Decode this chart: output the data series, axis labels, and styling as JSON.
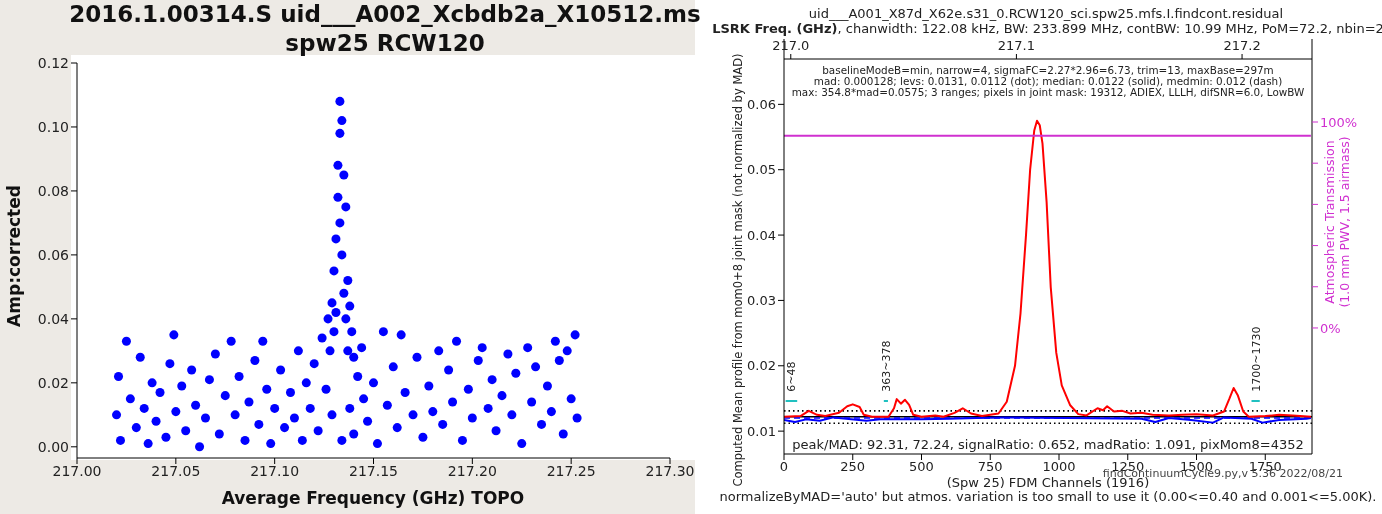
{
  "chart_data": [
    {
      "type": "scatter",
      "title": "2016.1.00314.S uid___A002_Xcbdb2a_X10512.ms",
      "subtitle": "spw25 RCW120",
      "xlabel": "Average Frequency (GHz) TOPO",
      "ylabel": "Amp:corrected",
      "color": "#0000ff",
      "marker": "circle",
      "x": [
        217.02,
        217.021,
        217.022,
        217.025,
        217.027,
        217.03,
        217.032,
        217.034,
        217.036,
        217.038,
        217.04,
        217.042,
        217.045,
        217.047,
        217.049,
        217.05,
        217.053,
        217.055,
        217.058,
        217.06,
        217.062,
        217.065,
        217.067,
        217.07,
        217.072,
        217.075,
        217.078,
        217.08,
        217.082,
        217.085,
        217.087,
        217.09,
        217.092,
        217.094,
        217.096,
        217.098,
        217.1,
        217.103,
        217.105,
        217.108,
        217.11,
        217.112,
        217.114,
        217.116,
        217.118,
        217.12,
        217.122,
        217.124,
        217.126,
        217.127,
        217.128,
        217.129,
        217.129,
        217.13,
        217.13,
        217.131,
        217.131,
        217.132,
        217.132,
        217.133,
        217.133,
        217.133,
        217.134,
        217.134,
        217.134,
        217.135,
        217.135,
        217.136,
        217.136,
        217.137,
        217.137,
        217.138,
        217.138,
        217.139,
        217.14,
        217.14,
        217.142,
        217.144,
        217.145,
        217.147,
        217.15,
        217.152,
        217.155,
        217.157,
        217.16,
        217.162,
        217.164,
        217.166,
        217.17,
        217.172,
        217.175,
        217.178,
        217.18,
        217.183,
        217.185,
        217.188,
        217.19,
        217.192,
        217.195,
        217.198,
        217.2,
        217.203,
        217.205,
        217.208,
        217.21,
        217.212,
        217.215,
        217.218,
        217.22,
        217.222,
        217.225,
        217.228,
        217.23,
        217.232,
        217.235,
        217.238,
        217.24,
        217.242,
        217.244,
        217.246,
        217.248,
        217.25,
        217.252,
        217.253
      ],
      "values": [
        0.01,
        0.022,
        0.002,
        0.033,
        0.015,
        0.006,
        0.028,
        0.012,
        0.001,
        0.02,
        0.008,
        0.017,
        0.003,
        0.026,
        0.035,
        0.011,
        0.019,
        0.005,
        0.024,
        0.013,
        0.0,
        0.009,
        0.021,
        0.029,
        0.004,
        0.016,
        0.033,
        0.01,
        0.022,
        0.002,
        0.014,
        0.027,
        0.007,
        0.033,
        0.018,
        0.001,
        0.012,
        0.024,
        0.006,
        0.017,
        0.009,
        0.03,
        0.002,
        0.02,
        0.012,
        0.026,
        0.005,
        0.034,
        0.018,
        0.04,
        0.03,
        0.045,
        0.01,
        0.055,
        0.036,
        0.065,
        0.042,
        0.078,
        0.088,
        0.098,
        0.108,
        0.07,
        0.102,
        0.06,
        0.002,
        0.085,
        0.048,
        0.075,
        0.04,
        0.052,
        0.03,
        0.044,
        0.012,
        0.036,
        0.028,
        0.004,
        0.022,
        0.031,
        0.015,
        0.008,
        0.02,
        0.001,
        0.036,
        0.013,
        0.025,
        0.006,
        0.035,
        0.017,
        0.01,
        0.028,
        0.003,
        0.019,
        0.011,
        0.03,
        0.007,
        0.024,
        0.014,
        0.033,
        0.002,
        0.018,
        0.009,
        0.027,
        0.031,
        0.012,
        0.021,
        0.005,
        0.016,
        0.029,
        0.01,
        0.023,
        0.001,
        0.031,
        0.014,
        0.025,
        0.007,
        0.019,
        0.011,
        0.033,
        0.027,
        0.004,
        0.03,
        0.015,
        0.035,
        0.009
      ],
      "xlim": [
        217.0,
        217.3
      ],
      "xticks": [
        {
          "value": 217.0,
          "label": "217.00"
        },
        {
          "value": 217.05,
          "label": "217.05"
        },
        {
          "value": 217.1,
          "label": "217.10"
        },
        {
          "value": 217.15,
          "label": "217.15"
        },
        {
          "value": 217.2,
          "label": "217.20"
        },
        {
          "value": 217.25,
          "label": "217.25"
        },
        {
          "value": 217.3,
          "label": "217.30"
        }
      ],
      "ylim": [
        -0.0035,
        0.12
      ],
      "yticks": [
        {
          "value": 0,
          "label": "0.00"
        },
        {
          "value": 0.02,
          "label": "0.02"
        },
        {
          "value": 0.04,
          "label": "0.04"
        },
        {
          "value": 0.06,
          "label": "0.06"
        },
        {
          "value": 0.08,
          "label": "0.08"
        },
        {
          "value": 0.1,
          "label": "0.10"
        },
        {
          "value": 0.12,
          "label": "0.12"
        }
      ]
    },
    {
      "type": "line",
      "title": "uid___A001_X87d_X62e.s31_0.RCW120_sci.spw25.mfs.I.findcont.residual",
      "x2label": "LSRK Freq. (GHz)",
      "subtitle": ", chanwidth: 122.08 kHz, BW: 233.899 MHz, contBW: 10.99 MHz, PoM=72.2, nbin=2",
      "xlabel": "(Spw 25) FDM Channels (1916)",
      "ylabel": "Computed Mean profile from mom0+8 joint mask (not normalized by MAD)",
      "y2label": "Atmospheric Transmission\n(1.0 mm PWV, 1.5 airmass)",
      "series": [
        {
          "color": "#0000ff",
          "x": [
            0,
            40,
            80,
            130,
            180,
            300,
            350,
            500,
            600,
            700,
            800,
            1300,
            1350,
            1400,
            1480,
            1560,
            1600,
            1700,
            1740,
            1800,
            1900,
            1916
          ],
          "values": [
            0.0117,
            0.0114,
            0.0118,
            0.0116,
            0.0121,
            0.0116,
            0.0118,
            0.0118,
            0.0119,
            0.012,
            0.0121,
            0.0119,
            0.0114,
            0.012,
            0.0117,
            0.0113,
            0.0121,
            0.0119,
            0.0113,
            0.0117,
            0.0119,
            0.012
          ]
        },
        {
          "color": "#ff0000",
          "x": [
            0,
            60,
            90,
            120,
            150,
            200,
            230,
            250,
            275,
            290,
            320,
            380,
            400,
            410,
            425,
            440,
            455,
            470,
            500,
            550,
            580,
            620,
            650,
            680,
            720,
            780,
            810,
            840,
            860,
            880,
            895,
            910,
            920,
            930,
            940,
            955,
            970,
            990,
            1010,
            1040,
            1070,
            1100,
            1140,
            1160,
            1175,
            1200,
            1230,
            1260,
            1300,
            1340,
            1400,
            1450,
            1500,
            1560,
            1600,
            1620,
            1635,
            1650,
            1670,
            1690,
            1750,
            1800,
            1850,
            1916
          ],
          "values": [
            0.0122,
            0.0123,
            0.0131,
            0.0125,
            0.0123,
            0.0128,
            0.0138,
            0.0141,
            0.0137,
            0.0125,
            0.0122,
            0.0122,
            0.0135,
            0.0149,
            0.0142,
            0.0148,
            0.014,
            0.0125,
            0.0122,
            0.0124,
            0.0122,
            0.0128,
            0.0135,
            0.0127,
            0.0123,
            0.0127,
            0.0145,
            0.02,
            0.028,
            0.04,
            0.05,
            0.056,
            0.0575,
            0.0568,
            0.054,
            0.045,
            0.032,
            0.022,
            0.017,
            0.014,
            0.0126,
            0.0124,
            0.0135,
            0.0132,
            0.0138,
            0.013,
            0.0131,
            0.0127,
            0.0128,
            0.0125,
            0.0124,
            0.0125,
            0.0126,
            0.0124,
            0.013,
            0.015,
            0.0166,
            0.0155,
            0.013,
            0.0122,
            0.0123,
            0.0125,
            0.0124,
            0.0122
          ]
        },
        {
          "color": "#20c0c0",
          "x": [
            6,
            48,
            200,
            363,
            378,
            1000,
            1700,
            1730
          ],
          "values": [
            0.0146,
            0.0146,
            null,
            0.0146,
            0.0146,
            null,
            0.0146,
            0.0146
          ]
        },
        {
          "color": "#d030d0",
          "axis": "y2",
          "x": [
            0,
            1916
          ],
          "values": [
            93.3,
            93.3
          ]
        }
      ],
      "ref_lines": [
        {
          "axis": "y",
          "value": 0.0131,
          "color": "#000000",
          "line_style": "dotted"
        },
        {
          "axis": "y",
          "value": 0.0112,
          "color": "#000000",
          "line_style": "dotted"
        },
        {
          "axis": "y",
          "value": 0.0122,
          "color": "#000000",
          "line_style": "solid"
        },
        {
          "axis": "y",
          "value": 0.012,
          "color": "#0000ff",
          "line_style": "dashed"
        }
      ],
      "annotations": [
        "baselineModeB=min, narrow=4, sigmaFC=2.27*2.96=6.73, trim=13, maxBase=297m",
        "mad: 0.000128; levs: 0.0131, 0.0112 (dot); median: 0.0122 (solid), medmin: 0.012 (dash)",
        "max: 354.8*mad=0.0575; 3 ranges; pixels in joint mask: 19312, ADIEX, LLLH, difSNR=6.0, LowBW",
        "peak/MAD: 92.31, 72.24, signalRatio: 0.652, madRatio: 1.091, pixMom8=4352",
        "findContinuumCycle9.py,v 5.36 2022/08/21",
        "normalizeByMAD='auto' but atmos. variation is too small to use it (0.00<=0.40 and 0.001<=5.00K).",
        "6~48",
        "363~378",
        "1700~1730"
      ],
      "xlim": [
        0,
        1920
      ],
      "xticks": [
        0,
        250,
        500,
        750,
        1000,
        1250,
        1500,
        1750
      ],
      "ylim": [
        0.0065,
        0.07
      ],
      "yticks": [
        0.01,
        0.02,
        0.03,
        0.04,
        0.05,
        0.06
      ],
      "y2lim": [
        -61.2,
        140.3
      ],
      "y2ticks": [
        {
          "value": 0,
          "label": "0%"
        },
        {
          "value": 20,
          "label": null
        },
        {
          "value": 40,
          "label": null
        },
        {
          "value": 60,
          "label": null
        },
        {
          "value": 80,
          "label": null
        },
        {
          "value": 100,
          "label": "100%"
        }
      ],
      "x2lim": [
        216.997,
        217.231
      ],
      "x2ticks": [
        {
          "value": 217.0,
          "label": "217.0"
        },
        {
          "value": 217.1,
          "label": "217.1"
        },
        {
          "value": 217.2,
          "label": "217.2"
        }
      ]
    }
  ]
}
